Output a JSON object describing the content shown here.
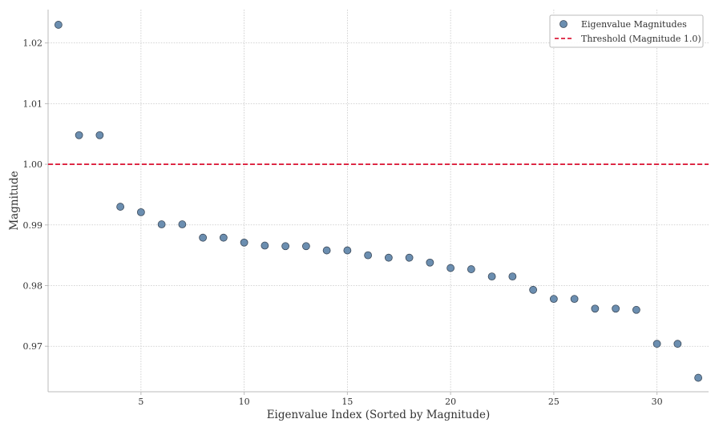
{
  "chart_data": {
    "type": "scatter",
    "xlabel": "Eigenvalue Index (Sorted by Magnitude)",
    "ylabel": "Magnitude",
    "xlim": [
      0.5,
      32.5
    ],
    "ylim": [
      0.9625,
      1.0255
    ],
    "xticks": [
      5,
      10,
      15,
      20,
      25,
      30
    ],
    "yticks": [
      0.97,
      0.98,
      0.99,
      1.0,
      1.01,
      1.02
    ],
    "ytick_labels": [
      "0.97",
      "0.98",
      "0.99",
      "1.00",
      "1.01",
      "1.02"
    ],
    "grid": true,
    "legend_position": "top-right",
    "series": [
      {
        "name": "Eigenvalue Magnitudes",
        "color": "#6b8eb0",
        "x": [
          1,
          2,
          3,
          4,
          5,
          6,
          7,
          8,
          9,
          10,
          11,
          12,
          13,
          14,
          15,
          16,
          17,
          18,
          19,
          20,
          21,
          22,
          23,
          24,
          25,
          26,
          27,
          28,
          29,
          30,
          31,
          32
        ],
        "y": [
          1.023,
          1.0048,
          1.0048,
          0.993,
          0.9921,
          0.9901,
          0.9901,
          0.9879,
          0.9879,
          0.9871,
          0.9866,
          0.9865,
          0.9865,
          0.9858,
          0.9858,
          0.985,
          0.9846,
          0.9846,
          0.9838,
          0.9829,
          0.9827,
          0.9815,
          0.9815,
          0.9793,
          0.9778,
          0.9778,
          0.9762,
          0.9762,
          0.976,
          0.9704,
          0.9704,
          0.9648
        ]
      }
    ],
    "threshold": {
      "name": "Threshold (Magnitude 1.0)",
      "value": 1.0,
      "color": "#dc1e3c"
    }
  }
}
